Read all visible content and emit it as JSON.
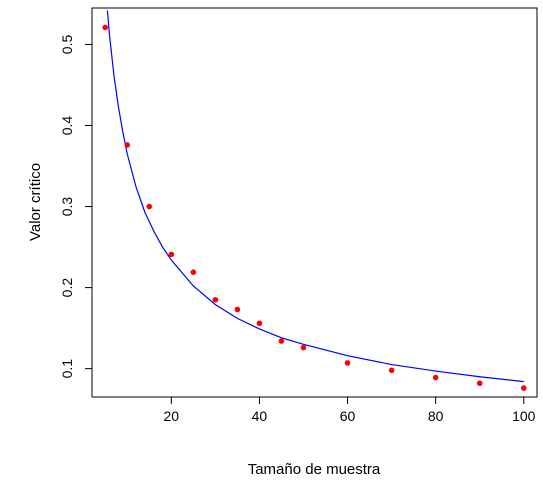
{
  "chart_data": {
    "type": "scatter",
    "title": "",
    "xlabel": "Tamaño de muestra",
    "ylabel": "Valor crítico",
    "xlim": [
      2,
      103
    ],
    "ylim": [
      0.065,
      0.545
    ],
    "x_ticks": [
      20,
      40,
      60,
      80,
      100
    ],
    "y_ticks": [
      0.1,
      0.2,
      0.3,
      0.4,
      0.5
    ],
    "x_tick_labels": [
      "20",
      "40",
      "60",
      "80",
      "100"
    ],
    "y_tick_labels": [
      "0.1",
      "0.2",
      "0.3",
      "0.4",
      "0.5"
    ],
    "grid": false,
    "legend": "none",
    "series": [
      {
        "kind": "points",
        "color": "#ff0000",
        "x": [
          5,
          10,
          15,
          20,
          25,
          30,
          35,
          40,
          45,
          50,
          60,
          70,
          80,
          90,
          100
        ],
        "y": [
          0.521,
          0.376,
          0.3,
          0.241,
          0.219,
          0.185,
          0.173,
          0.156,
          0.134,
          0.126,
          0.107,
          0.098,
          0.089,
          0.082,
          0.076
        ]
      },
      {
        "kind": "curve",
        "color": "#0000ff",
        "x": [
          5.5,
          6,
          7,
          8,
          9,
          10,
          12,
          14,
          16,
          18,
          20,
          25,
          30,
          35,
          40,
          45,
          50,
          60,
          70,
          80,
          90,
          100
        ],
        "y": [
          0.542,
          0.51,
          0.461,
          0.423,
          0.392,
          0.365,
          0.324,
          0.293,
          0.27,
          0.25,
          0.234,
          0.202,
          0.179,
          0.162,
          0.149,
          0.138,
          0.13,
          0.116,
          0.105,
          0.097,
          0.09,
          0.084
        ]
      }
    ]
  }
}
